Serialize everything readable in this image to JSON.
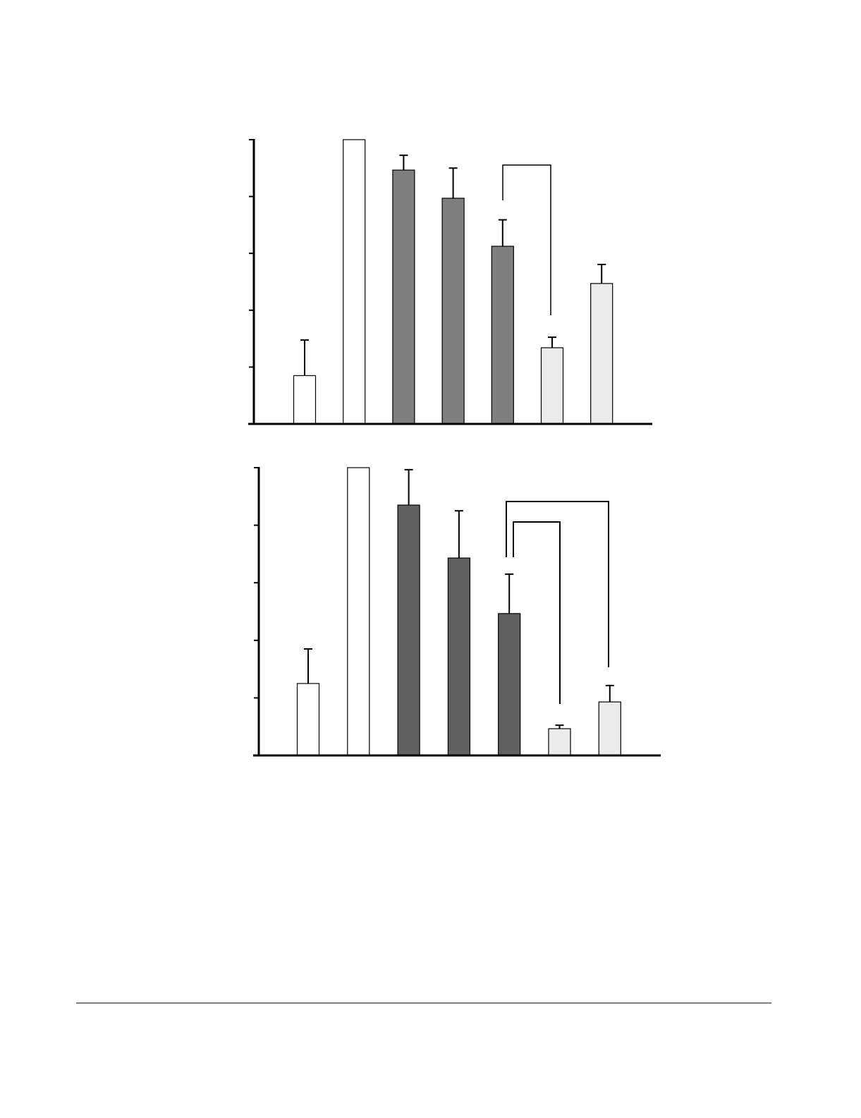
{
  "chart_data": [
    {
      "type": "bar",
      "ylim": [
        0,
        100
      ],
      "yticks": [
        0,
        20,
        40,
        60,
        80,
        100
      ],
      "values": [
        17,
        100,
        89.3,
        79.4,
        62.5,
        26.8,
        49.4
      ],
      "errors": [
        12.5,
        null,
        5.2,
        10.6,
        9.3,
        3.7,
        6.7
      ],
      "colors": [
        "#ffffff",
        "#ffffff",
        "#7f7f7f",
        "#7f7f7f",
        "#7f7f7f",
        "#ebebeb",
        "#ebebeb"
      ]
    },
    {
      "type": "bar",
      "ylim": [
        0,
        100
      ],
      "yticks": [
        0,
        20,
        40,
        60,
        80,
        100
      ],
      "values": [
        25,
        100,
        87,
        68.6,
        49.3,
        9.3,
        18.6
      ],
      "errors": [
        12,
        null,
        12.3,
        16.4,
        13.7,
        1.2,
        5.7
      ],
      "colors": [
        "#ffffff",
        "#ffffff",
        "#606060",
        "#606060",
        "#606060",
        "#ebebeb",
        "#ebebeb"
      ]
    }
  ]
}
